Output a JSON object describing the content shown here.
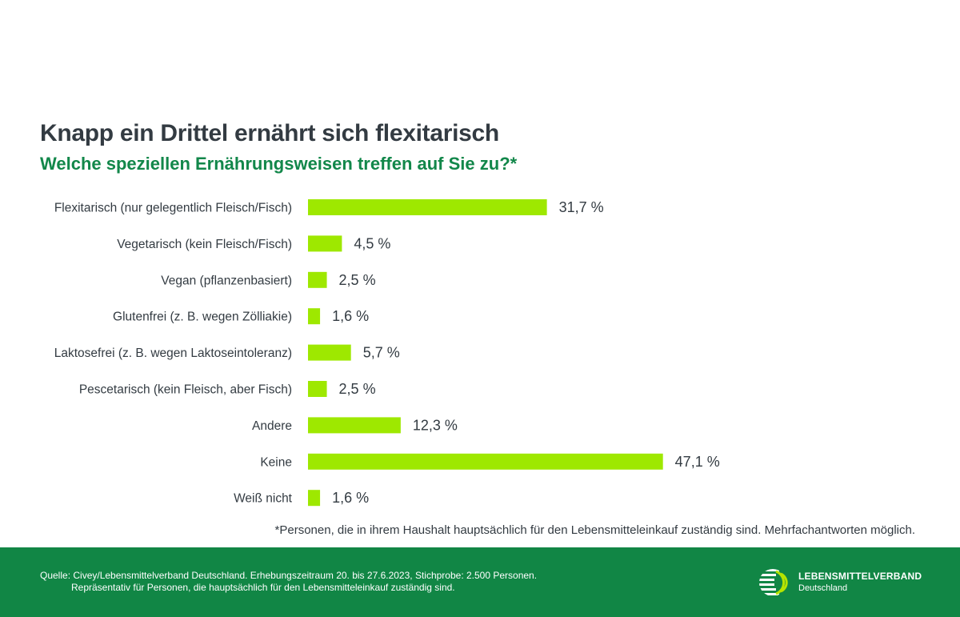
{
  "title": "Knapp ein Drittel ernährt sich flexitarisch",
  "subtitle": "Welche speziellen Ernährungsweisen treffen auf Sie zu?*",
  "chart_data": {
    "type": "bar",
    "orientation": "horizontal",
    "title": "Knapp ein Drittel ernährt sich flexitarisch",
    "subtitle": "Welche speziellen Ernährungsweisen treffen auf Sie zu?*",
    "categories": [
      "Flexitarisch (nur gelegentlich Fleisch/Fisch)",
      "Vegetarisch (kein Fleisch/Fisch)",
      "Vegan (pflanzenbasiert)",
      "Glutenfrei (z. B. wegen Zölliakie)",
      "Laktosefrei (z. B. wegen Laktoseintoleranz)",
      "Pescetarisch (kein Fleisch, aber Fisch)",
      "Andere",
      "Keine",
      "Weiß nicht"
    ],
    "values": [
      31.7,
      4.5,
      2.5,
      1.6,
      5.7,
      2.5,
      12.3,
      47.1,
      1.6
    ],
    "value_labels": [
      "31,7 %",
      "4,5 %",
      "2,5 %",
      "1,6 %",
      "5,7 %",
      "2,5 %",
      "12,3 %",
      "47,1 %",
      "1,6 %"
    ],
    "unit": "%",
    "xlim": [
      0,
      50
    ],
    "grid": false,
    "bar_color": "#9ee800"
  },
  "footnote": "*Personen, die in ihrem Haushalt hauptsächlich für den Lebensmitteleinkauf zuständig sind. Mehrfachantworten möglich.",
  "footer": {
    "source_line1": "Quelle: Civey/Lebensmittelverband Deutschland. Erhebungszeitraum 20. bis 27.6.2023, Stichprobe: 2.500 Personen.",
    "source_line2": "Repräsentativ für Personen, die hauptsächlich für den Lebensmitteleinkauf zuständig sind.",
    "logo_name": "LEBENSMITTELVERBAND",
    "logo_sub": "Deutschland",
    "background_color": "#118645"
  },
  "colors": {
    "title": "#333b42",
    "subtitle": "#12874a",
    "bar": "#9ee800"
  }
}
